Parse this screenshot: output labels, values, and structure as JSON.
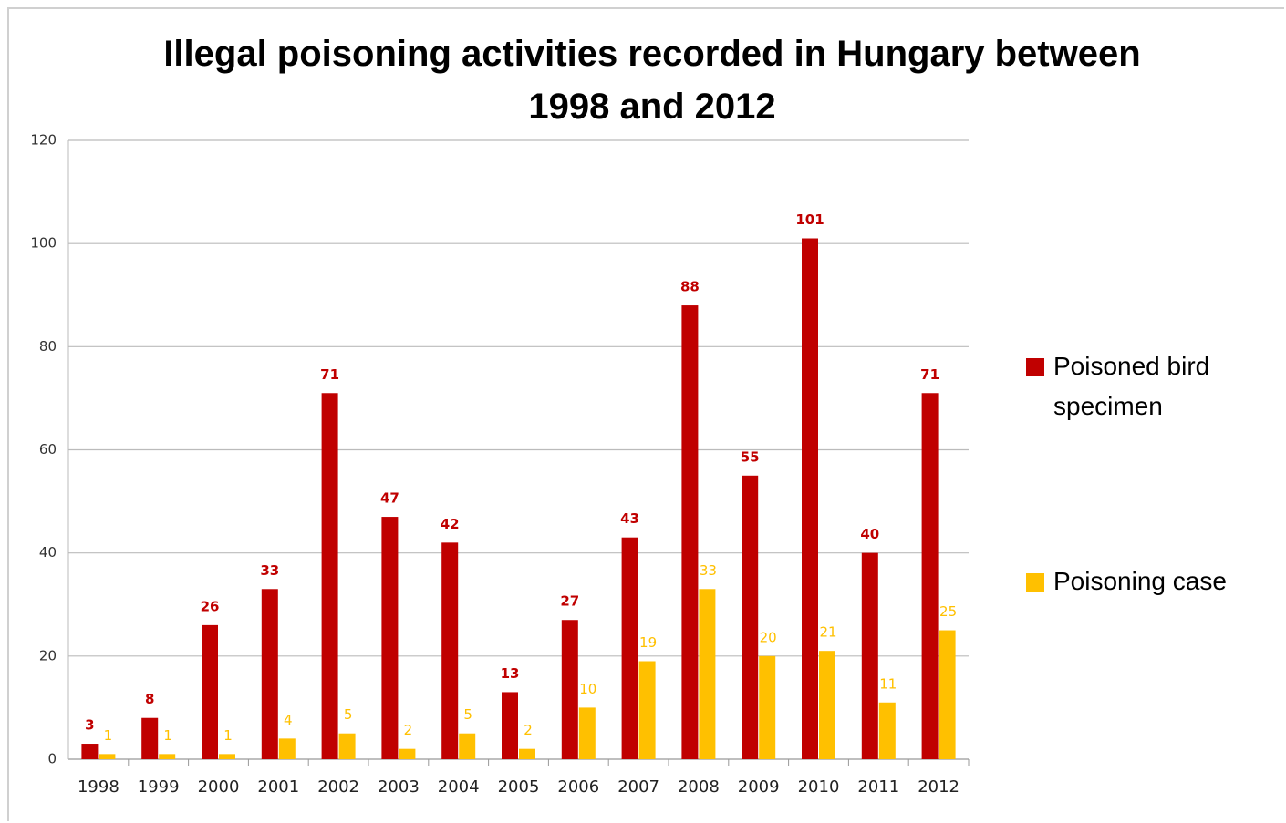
{
  "chart_data": {
    "type": "bar",
    "title": "Illegal poisoning activities recorded in Hungary between 1998 and 2012",
    "categories": [
      "1998",
      "1999",
      "2000",
      "2001",
      "2002",
      "2003",
      "2004",
      "2005",
      "2006",
      "2007",
      "2008",
      "2009",
      "2010",
      "2011",
      "2012"
    ],
    "series": [
      {
        "name": "Poisoned bird specimen",
        "color": "#c00000",
        "values": [
          3,
          8,
          26,
          33,
          71,
          47,
          42,
          13,
          27,
          43,
          88,
          55,
          101,
          40,
          71
        ]
      },
      {
        "name": "Poisoning case",
        "color": "#ffc000",
        "values": [
          1,
          1,
          1,
          4,
          5,
          2,
          5,
          2,
          10,
          19,
          33,
          20,
          21,
          11,
          25
        ]
      }
    ],
    "ylim": [
      0,
      120
    ],
    "yticks": [
      0,
      20,
      40,
      60,
      80,
      100,
      120
    ],
    "grid": true,
    "legend": "right"
  }
}
